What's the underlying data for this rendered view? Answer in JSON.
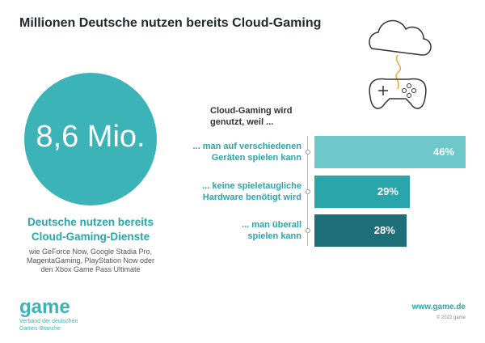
{
  "header": {
    "title": "Millionen Deutsche nutzen bereits Cloud-Gaming"
  },
  "stat": {
    "label": "8,6 Mio.",
    "headline": "Deutsche nutzen bereits\nCloud-Gaming-Dienste",
    "description": "wie GeForce Now, Google Stadia Pro,\nMagentaGaming, PlayStation Now oder\nden Xbox Game Pass Ultimate"
  },
  "chart_data": {
    "type": "bar",
    "orientation": "horizontal",
    "title": "Cloud-Gaming wird\ngenutzt, weil ...",
    "categories": [
      "... man auf verschiedenen\nGeräten spielen kann",
      "... keine spieletaugliche\nHardware benötigt wird",
      "... man überall\nspielen kann"
    ],
    "values": [
      46,
      29,
      28
    ],
    "value_labels": [
      "46%",
      "29%",
      "28%"
    ],
    "colors": [
      "#6ec8ca",
      "#2aa6aa",
      "#1d6f78"
    ],
    "xlim": [
      0,
      46
    ]
  },
  "footer": {
    "logo": "game",
    "logo_subtitle": "Verband der deutschen\nGames-Branche",
    "url": "www.game.de",
    "copyright": "© 2022 game"
  }
}
